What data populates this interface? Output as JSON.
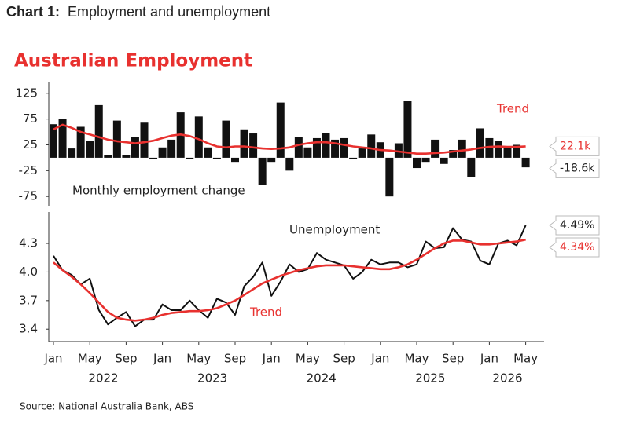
{
  "header": {
    "label": "Chart 1:",
    "title": "Employment and unemployment"
  },
  "title": "Australian Employment",
  "source": "Source: National Australia Bank, ABS",
  "chart_data": [
    {
      "type": "bar",
      "x": [
        "2022-01",
        "2022-02",
        "2022-03",
        "2022-04",
        "2022-05",
        "2022-06",
        "2022-07",
        "2022-08",
        "2022-09",
        "2022-10",
        "2022-11",
        "2022-12",
        "2023-01",
        "2023-02",
        "2023-03",
        "2023-04",
        "2023-05",
        "2023-06",
        "2023-07",
        "2023-08",
        "2023-09",
        "2023-10",
        "2023-11",
        "2023-12",
        "2024-01",
        "2024-02",
        "2024-03",
        "2024-04",
        "2024-05",
        "2024-06",
        "2024-07",
        "2024-08",
        "2024-09",
        "2024-10",
        "2024-11",
        "2024-12",
        "2025-01",
        "2025-02",
        "2025-03",
        "2025-04",
        "2025-05",
        "2025-06",
        "2025-07",
        "2025-08",
        "2025-09",
        "2025-10",
        "2025-11",
        "2025-12",
        "2026-01",
        "2026-02",
        "2026-03",
        "2026-04",
        "2026-05"
      ],
      "ylim": [
        -93,
        146
      ],
      "yticks": [
        125,
        75,
        25,
        -25,
        -75
      ],
      "series": [
        {
          "name": "Monthly employment change",
          "type": "bar",
          "color": "#111111",
          "values": [
            65,
            75,
            18,
            60,
            32,
            102,
            5,
            72,
            5,
            40,
            68,
            -3,
            20,
            35,
            88,
            -2,
            80,
            20,
            -2,
            72,
            -8,
            55,
            47,
            -52,
            -8,
            107,
            -25,
            40,
            20,
            38,
            48,
            35,
            38,
            -2,
            18,
            45,
            30,
            -75,
            28,
            110,
            -20,
            -8,
            35,
            -12,
            15,
            35,
            -38,
            57,
            38,
            32,
            20,
            25,
            -18.6
          ],
          "value_labels": [
            null,
            null,
            null,
            null,
            null,
            null,
            null,
            null,
            null,
            null,
            null,
            null,
            null,
            null,
            null,
            null,
            null,
            null,
            null,
            null,
            null,
            null,
            null,
            null,
            null,
            null,
            null,
            null,
            null,
            null,
            null,
            null,
            null,
            null,
            null,
            null,
            null,
            null,
            null,
            null,
            null,
            null,
            null,
            null,
            null,
            null,
            null,
            null,
            null,
            null,
            null,
            null,
            "-18.6k"
          ]
        },
        {
          "name": "Trend",
          "type": "line",
          "color": "#e8312f",
          "values": [
            55,
            64,
            58,
            50,
            45,
            40,
            35,
            32,
            30,
            28,
            30,
            33,
            38,
            43,
            45,
            42,
            36,
            28,
            22,
            20,
            22,
            22,
            20,
            18,
            17,
            18,
            20,
            25,
            28,
            30,
            30,
            28,
            25,
            22,
            20,
            18,
            15,
            14,
            12,
            10,
            8,
            8,
            9,
            10,
            12,
            14,
            16,
            19,
            21,
            22,
            21,
            21,
            22.1
          ],
          "value_labels": [
            null,
            null,
            null,
            null,
            null,
            null,
            null,
            null,
            null,
            null,
            null,
            null,
            null,
            null,
            null,
            null,
            null,
            null,
            null,
            null,
            null,
            null,
            null,
            null,
            null,
            null,
            null,
            null,
            null,
            null,
            null,
            null,
            null,
            null,
            null,
            null,
            null,
            null,
            null,
            null,
            null,
            null,
            null,
            null,
            null,
            null,
            null,
            null,
            null,
            null,
            null,
            null,
            "22.1k"
          ]
        }
      ]
    },
    {
      "type": "line",
      "x": [
        "2022-01",
        "2022-02",
        "2022-03",
        "2022-04",
        "2022-05",
        "2022-06",
        "2022-07",
        "2022-08",
        "2022-09",
        "2022-10",
        "2022-11",
        "2022-12",
        "2023-01",
        "2023-02",
        "2023-03",
        "2023-04",
        "2023-05",
        "2023-06",
        "2023-07",
        "2023-08",
        "2023-09",
        "2023-10",
        "2023-11",
        "2023-12",
        "2024-01",
        "2024-02",
        "2024-03",
        "2024-04",
        "2024-05",
        "2024-06",
        "2024-07",
        "2024-08",
        "2024-09",
        "2024-10",
        "2024-11",
        "2024-12",
        "2025-01",
        "2025-02",
        "2025-03",
        "2025-04",
        "2025-05",
        "2025-06",
        "2025-07",
        "2025-08",
        "2025-09",
        "2025-10",
        "2025-11",
        "2025-12",
        "2026-01",
        "2026-02",
        "2026-03",
        "2026-04",
        "2026-05"
      ],
      "ylim": [
        3.27,
        4.63
      ],
      "yticks": [
        4.3,
        {
          "value": 4.0,
          "label": "4.0"
        },
        3.7,
        3.4
      ],
      "xticks": [
        {
          "value": "2022-01",
          "label": "Jan"
        },
        {
          "value": "2022-05",
          "label": "May"
        },
        {
          "value": "2022-09",
          "label": "Sep"
        },
        {
          "value": "2023-01",
          "label": "Jan"
        },
        {
          "value": "2023-05",
          "label": "May"
        },
        {
          "value": "2023-09",
          "label": "Sep"
        },
        {
          "value": "2024-01",
          "label": "Jan"
        },
        {
          "value": "2024-05",
          "label": "May"
        },
        {
          "value": "2024-09",
          "label": "Sep"
        },
        {
          "value": "2025-01",
          "label": "Jan"
        },
        {
          "value": "2025-05",
          "label": "May"
        },
        {
          "value": "2025-09",
          "label": "Sep"
        },
        {
          "value": "2026-01",
          "label": "Jan"
        },
        {
          "value": "2026-05",
          "label": "May"
        }
      ],
      "xyears": [
        "2022",
        "2023",
        "2024",
        "2025",
        "2026"
      ],
      "series": [
        {
          "name": "Unemployment",
          "type": "line",
          "color": "#111111",
          "values": [
            4.17,
            4.02,
            3.97,
            3.87,
            3.93,
            3.6,
            3.45,
            3.52,
            3.58,
            3.43,
            3.5,
            3.5,
            3.66,
            3.6,
            3.6,
            3.7,
            3.6,
            3.52,
            3.72,
            3.68,
            3.55,
            3.85,
            3.95,
            4.1,
            3.75,
            3.9,
            4.08,
            4.0,
            4.03,
            4.2,
            4.13,
            4.1,
            4.07,
            3.93,
            4.0,
            4.13,
            4.08,
            4.1,
            4.1,
            4.05,
            4.08,
            4.32,
            4.25,
            4.26,
            4.46,
            4.34,
            4.32,
            4.12,
            4.08,
            4.3,
            4.33,
            4.28,
            4.49
          ],
          "value_labels": [
            null,
            null,
            null,
            null,
            null,
            null,
            null,
            null,
            null,
            null,
            null,
            null,
            null,
            null,
            null,
            null,
            null,
            null,
            null,
            null,
            null,
            null,
            null,
            null,
            null,
            null,
            null,
            null,
            null,
            null,
            null,
            null,
            null,
            null,
            null,
            null,
            null,
            null,
            null,
            null,
            null,
            null,
            null,
            null,
            null,
            null,
            null,
            null,
            null,
            null,
            null,
            null,
            "4.49%"
          ]
        },
        {
          "name": "Trend",
          "type": "line",
          "color": "#e8312f",
          "values": [
            4.1,
            4.02,
            3.95,
            3.87,
            3.78,
            3.68,
            3.58,
            3.52,
            3.5,
            3.49,
            3.5,
            3.52,
            3.55,
            3.57,
            3.58,
            3.59,
            3.59,
            3.6,
            3.62,
            3.66,
            3.7,
            3.76,
            3.82,
            3.88,
            3.92,
            3.96,
            3.99,
            4.02,
            4.04,
            4.06,
            4.07,
            4.07,
            4.07,
            4.06,
            4.05,
            4.04,
            4.03,
            4.03,
            4.05,
            4.08,
            4.13,
            4.19,
            4.25,
            4.3,
            4.33,
            4.33,
            4.31,
            4.29,
            4.29,
            4.3,
            4.31,
            4.32,
            4.34
          ],
          "value_labels": [
            null,
            null,
            null,
            null,
            null,
            null,
            null,
            null,
            null,
            null,
            null,
            null,
            null,
            null,
            null,
            null,
            null,
            null,
            null,
            null,
            null,
            null,
            null,
            null,
            null,
            null,
            null,
            null,
            null,
            null,
            null,
            null,
            null,
            null,
            null,
            null,
            null,
            null,
            null,
            null,
            null,
            null,
            null,
            null,
            null,
            null,
            null,
            null,
            null,
            null,
            null,
            null,
            "4.34%"
          ]
        }
      ]
    }
  ]
}
